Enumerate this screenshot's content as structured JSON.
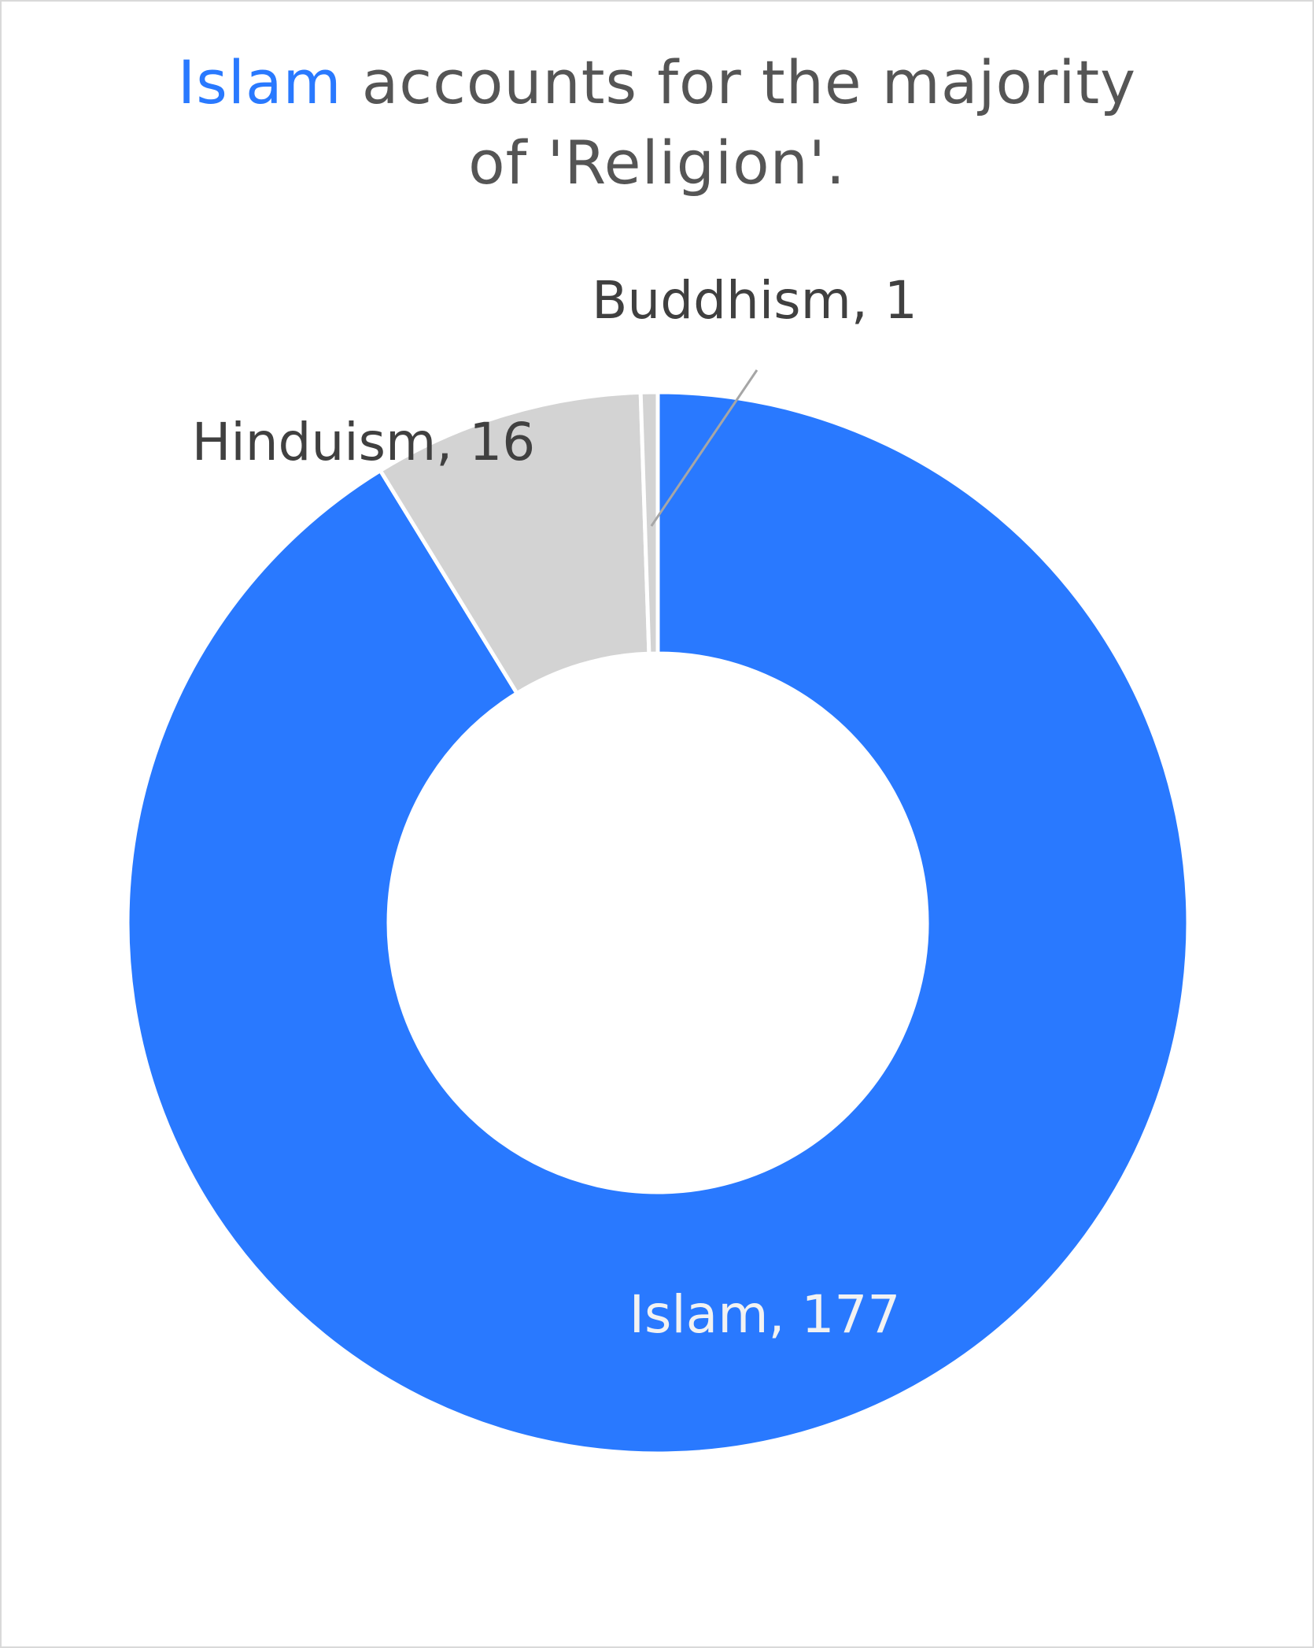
{
  "title": {
    "highlight": "Islam",
    "line1_rest": " accounts for the majority",
    "line2": "of 'Religion'."
  },
  "colors": {
    "highlight": "#2979ff",
    "other": "#d3d3d3",
    "title_text": "#555555",
    "label_dark": "#404040",
    "label_light": "#f2f2f2",
    "leader": "#a6a6a6"
  },
  "chart_data": {
    "type": "pie",
    "donut": true,
    "labels": [
      "Islam",
      "Hinduism",
      "Buddhism"
    ],
    "values": [
      177,
      16,
      1
    ],
    "data_labels": [
      "Islam, 177",
      "Hinduism, 16",
      "Buddhism, 1"
    ]
  }
}
